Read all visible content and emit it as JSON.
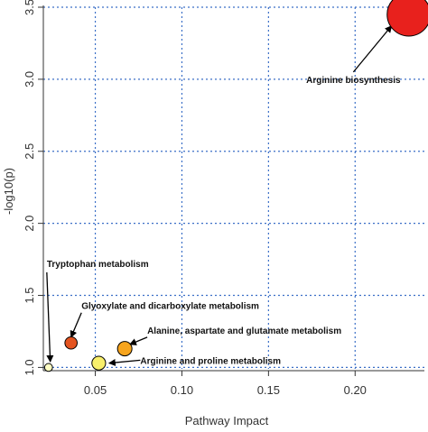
{
  "chart_data": {
    "type": "scatter",
    "title": "",
    "xlabel": "Pathway Impact",
    "ylabel": "-log10(p)",
    "xlim": [
      0.02,
      0.24
    ],
    "ylim": [
      0.99,
      3.5
    ],
    "x_ticks": [
      0.05,
      0.1,
      0.15,
      0.2
    ],
    "x_tick_labels": [
      "0.05",
      "0.10",
      "0.15",
      "0.20"
    ],
    "y_ticks": [
      1.0,
      1.5,
      2.0,
      2.5,
      3.0,
      3.5
    ],
    "y_tick_labels": [
      "1.0",
      "1.5",
      "2.0",
      "2.5",
      "3.0",
      "3.5"
    ],
    "grid": true,
    "legend": "none",
    "points": [
      {
        "label": "Arginine biosynthesis",
        "x": 0.231,
        "y": 3.45,
        "size": 3.0,
        "color": "#e8211d"
      },
      {
        "label": "Tryptophan metabolism",
        "x": 0.023,
        "y": 1.0,
        "size": 0.55,
        "color": "#ffffc4"
      },
      {
        "label": "Glyoxylate and dicarboxylate metabolism",
        "x": 0.036,
        "y": 1.17,
        "size": 0.85,
        "color": "#e45420"
      },
      {
        "label": "Alanine, aspartate and glutamate metabolism",
        "x": 0.067,
        "y": 1.13,
        "size": 1.0,
        "color": "#f7a51e"
      },
      {
        "label": "Arginine and proline metabolism",
        "x": 0.052,
        "y": 1.03,
        "size": 0.95,
        "color": "#f8ef6b"
      }
    ],
    "annotations": [
      {
        "text": "Arginine biosynthesis",
        "text_x": 0.199,
        "text_y": 3.05,
        "target_x": 0.221,
        "target_y": 3.37
      },
      {
        "text": "Tryptophan metabolism",
        "text_x": 0.022,
        "text_y": 1.66,
        "target_x": 0.024,
        "target_y": 1.04
      },
      {
        "text": "Glyoxylate and dicarboxylate metabolism",
        "text_x": 0.042,
        "text_y": 1.38,
        "target_x": 0.036,
        "target_y": 1.21
      },
      {
        "text": "Alanine, aspartate and glutamate metabolism",
        "text_x": 0.08,
        "text_y": 1.21,
        "target_x": 0.07,
        "target_y": 1.16
      },
      {
        "text": "Arginine and proline metabolism",
        "text_x": 0.076,
        "text_y": 1.05,
        "target_x": 0.058,
        "target_y": 1.03
      }
    ]
  }
}
